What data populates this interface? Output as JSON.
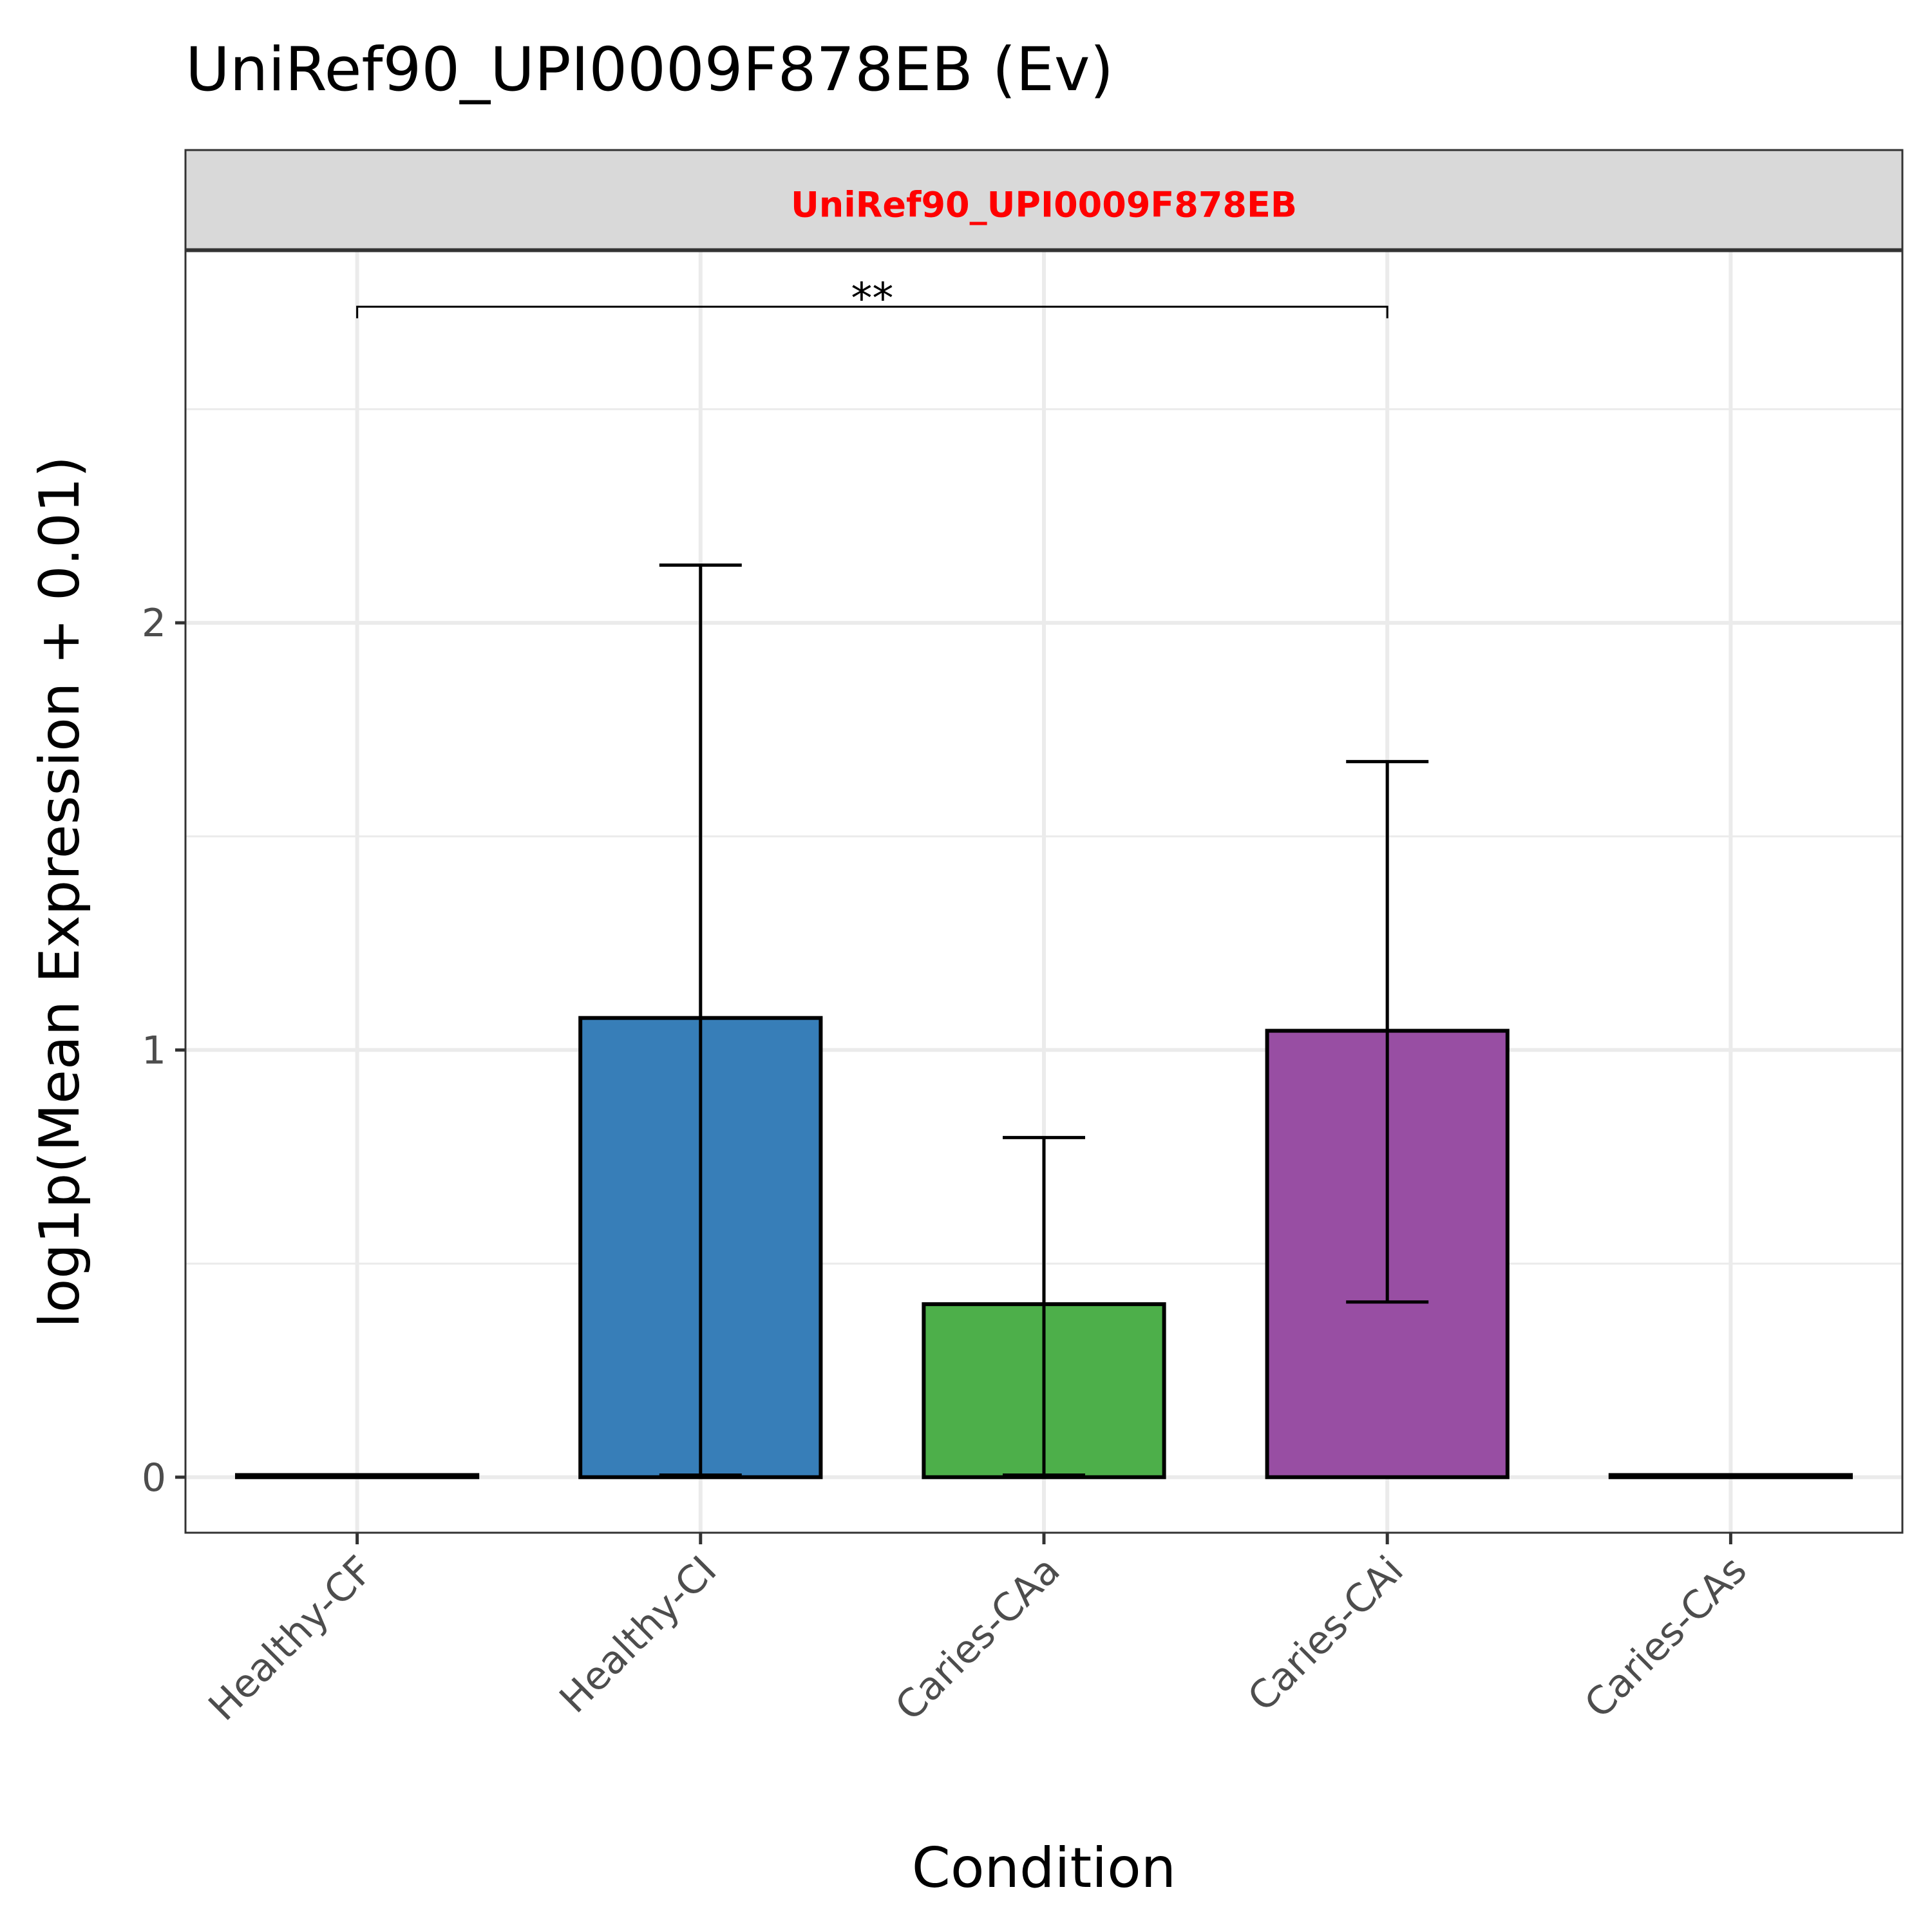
{
  "chart_data": {
    "type": "bar",
    "title": "UniRef90_UPI0009F878EB (Ev)",
    "facet_label": "UniRef90_UPI0009F878EB",
    "facet_label_color": "#ff0000",
    "xlabel": "Condition",
    "ylabel": "log1p(Mean Expression + 0.01)",
    "ylim": [
      -0.13,
      2.87
    ],
    "yticks": [
      0,
      1,
      2
    ],
    "ytick_labels": [
      "0",
      "1",
      "2"
    ],
    "categories": [
      "Healthy-CF",
      "Healthy-CI",
      "Caries-CAa",
      "Caries-CAi",
      "Caries-CAs"
    ],
    "values": [
      0.005,
      1.075,
      0.405,
      1.045,
      0.005
    ],
    "error_low": [
      0.005,
      0.005,
      0.005,
      0.41,
      0.005
    ],
    "error_high": [
      0.005,
      2.135,
      0.795,
      1.675,
      0.005
    ],
    "colors": [
      "#e41a1c",
      "#377eb8",
      "#4daf4a",
      "#984ea3",
      "#ff7f00"
    ],
    "grid": true,
    "significance": [
      {
        "from": "Healthy-CF",
        "to": "Caries-CAi",
        "label": "**",
        "y": 2.74
      }
    ]
  }
}
